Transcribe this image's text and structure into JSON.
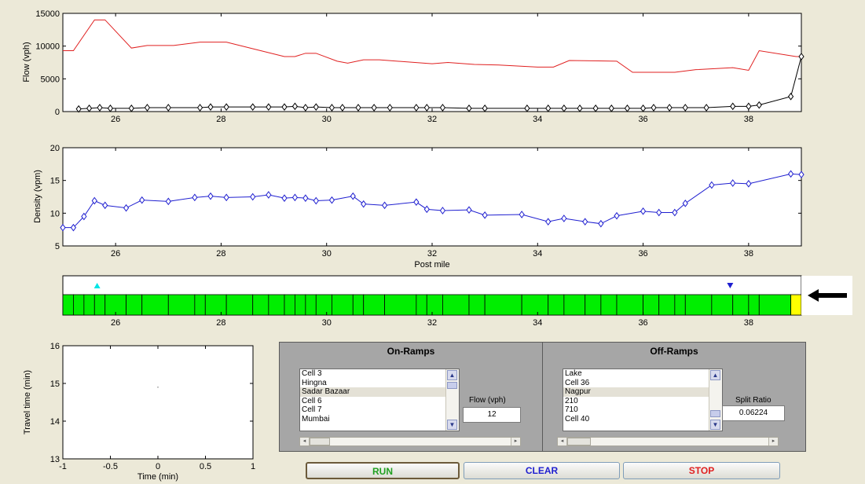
{
  "flow_chart": {
    "ylabel": "Flow (vph)",
    "yticks": [
      "0",
      "5000",
      "10000",
      "15000"
    ],
    "xticks": [
      "26",
      "28",
      "30",
      "32",
      "34",
      "36",
      "38"
    ],
    "xlim": [
      25,
      39
    ],
    "ylim": [
      0,
      15000
    ],
    "series": [
      {
        "color": "#e02020",
        "marker": "none",
        "points": [
          [
            25,
            9300
          ],
          [
            25.2,
            9300
          ],
          [
            25.6,
            14000
          ],
          [
            25.8,
            14000
          ],
          [
            26.3,
            9700
          ],
          [
            26.6,
            10100
          ],
          [
            27.1,
            10100
          ],
          [
            27.6,
            10600
          ],
          [
            28.1,
            10600
          ],
          [
            28.6,
            9600
          ],
          [
            29.2,
            8400
          ],
          [
            29.4,
            8400
          ],
          [
            29.6,
            8900
          ],
          [
            29.8,
            8900
          ],
          [
            30.2,
            7700
          ],
          [
            30.4,
            7400
          ],
          [
            30.7,
            7900
          ],
          [
            31.0,
            7900
          ],
          [
            32.0,
            7300
          ],
          [
            32.3,
            7500
          ],
          [
            32.8,
            7200
          ],
          [
            33.3,
            7100
          ],
          [
            34.0,
            6800
          ],
          [
            34.3,
            6800
          ],
          [
            34.6,
            7800
          ],
          [
            35.5,
            7700
          ],
          [
            35.8,
            6000
          ],
          [
            36.6,
            6000
          ],
          [
            37.0,
            6400
          ],
          [
            37.7,
            6700
          ],
          [
            38.0,
            6300
          ],
          [
            38.2,
            9300
          ],
          [
            38.9,
            8400
          ],
          [
            39.0,
            8400
          ]
        ]
      },
      {
        "color": "#000000",
        "marker": "diamond",
        "points": [
          [
            25.3,
            400
          ],
          [
            25.5,
            500
          ],
          [
            25.7,
            600
          ],
          [
            25.9,
            500
          ],
          [
            26.3,
            500
          ],
          [
            26.6,
            600
          ],
          [
            27.0,
            600
          ],
          [
            27.6,
            600
          ],
          [
            27.8,
            700
          ],
          [
            28.1,
            700
          ],
          [
            28.6,
            700
          ],
          [
            28.9,
            700
          ],
          [
            29.2,
            700
          ],
          [
            29.4,
            800
          ],
          [
            29.6,
            600
          ],
          [
            29.8,
            700
          ],
          [
            30.1,
            600
          ],
          [
            30.3,
            600
          ],
          [
            30.6,
            600
          ],
          [
            30.9,
            600
          ],
          [
            31.2,
            600
          ],
          [
            31.7,
            600
          ],
          [
            31.9,
            600
          ],
          [
            32.2,
            600
          ],
          [
            32.7,
            500
          ],
          [
            33.0,
            500
          ],
          [
            33.8,
            500
          ],
          [
            34.2,
            500
          ],
          [
            34.5,
            500
          ],
          [
            34.8,
            500
          ],
          [
            35.1,
            500
          ],
          [
            35.4,
            500
          ],
          [
            35.7,
            500
          ],
          [
            36.0,
            500
          ],
          [
            36.2,
            600
          ],
          [
            36.5,
            600
          ],
          [
            36.8,
            600
          ],
          [
            37.2,
            600
          ],
          [
            37.7,
            800
          ],
          [
            38.0,
            800
          ],
          [
            38.2,
            1000
          ],
          [
            38.8,
            2300
          ],
          [
            39.0,
            8400
          ]
        ]
      }
    ]
  },
  "density_chart": {
    "ylabel": "Density (vpm)",
    "xlabel": "Post mile",
    "yticks": [
      "5",
      "10",
      "15",
      "20"
    ],
    "xticks": [
      "26",
      "28",
      "30",
      "32",
      "34",
      "36",
      "38"
    ],
    "xlim": [
      25,
      39
    ],
    "ylim": [
      5,
      20
    ],
    "series": [
      {
        "color": "#1f1fd0",
        "marker": "diamond",
        "points": [
          [
            25.0,
            7.8
          ],
          [
            25.2,
            7.8
          ],
          [
            25.4,
            9.5
          ],
          [
            25.6,
            11.9
          ],
          [
            25.8,
            11.2
          ],
          [
            26.2,
            10.8
          ],
          [
            26.5,
            12.0
          ],
          [
            27.0,
            11.8
          ],
          [
            27.5,
            12.4
          ],
          [
            27.8,
            12.6
          ],
          [
            28.1,
            12.4
          ],
          [
            28.6,
            12.5
          ],
          [
            28.9,
            12.8
          ],
          [
            29.2,
            12.3
          ],
          [
            29.4,
            12.4
          ],
          [
            29.6,
            12.3
          ],
          [
            29.8,
            11.9
          ],
          [
            30.1,
            12.0
          ],
          [
            30.5,
            12.6
          ],
          [
            30.7,
            11.4
          ],
          [
            31.1,
            11.2
          ],
          [
            31.7,
            11.7
          ],
          [
            31.9,
            10.6
          ],
          [
            32.2,
            10.4
          ],
          [
            32.7,
            10.5
          ],
          [
            33.0,
            9.7
          ],
          [
            33.7,
            9.8
          ],
          [
            34.2,
            8.7
          ],
          [
            34.5,
            9.2
          ],
          [
            34.9,
            8.7
          ],
          [
            35.2,
            8.4
          ],
          [
            35.5,
            9.6
          ],
          [
            36.0,
            10.3
          ],
          [
            36.3,
            10.1
          ],
          [
            36.6,
            10.1
          ],
          [
            36.8,
            11.5
          ],
          [
            37.3,
            14.3
          ],
          [
            37.7,
            14.6
          ],
          [
            38.0,
            14.5
          ],
          [
            38.8,
            16.0
          ],
          [
            39.0,
            15.9
          ]
        ]
      }
    ]
  },
  "ramp_strip": {
    "xticks": [
      "26",
      "28",
      "30",
      "32",
      "34",
      "36",
      "38"
    ],
    "xlim": [
      25,
      39
    ],
    "boundaries": [
      25.2,
      25.4,
      25.6,
      25.8,
      26.2,
      26.5,
      27.0,
      27.5,
      27.7,
      28.1,
      28.6,
      28.9,
      29.2,
      29.4,
      29.6,
      29.8,
      30.1,
      30.5,
      30.7,
      31.1,
      31.7,
      31.9,
      32.2,
      32.7,
      33.0,
      33.7,
      34.2,
      34.5,
      34.9,
      35.2,
      35.5,
      36.0,
      36.3,
      36.6,
      36.8,
      37.3,
      37.7,
      38.0,
      38.2,
      38.8
    ],
    "cell_color": "#00ee00",
    "last_cell_color": "#ffff00",
    "onramp_marker": {
      "x": 25.65,
      "color": "#00e5e5"
    },
    "offramp_marker": {
      "x": 37.65,
      "color": "#1f1fd0"
    },
    "arrow_icon": "left-arrow-icon"
  },
  "travel_chart": {
    "ylabel": "Travel time (min)",
    "xlabel": "Time (min)",
    "xticks": [
      "-1",
      "-0.5",
      "0",
      "0.5",
      "1"
    ],
    "yticks": [
      "13",
      "14",
      "15",
      "16"
    ],
    "xlim": [
      -1,
      1
    ],
    "ylim": [
      13,
      16
    ],
    "point": [
      0,
      14.9
    ]
  },
  "onramps": {
    "title": "On-Ramps",
    "items": [
      "Cell 3",
      "Hingna",
      "Sadar Bazaar",
      "Cell 6",
      "Cell 7",
      "Mumbai"
    ],
    "selected_index": 2,
    "flow_label": "Flow (vph)",
    "flow_value": "12"
  },
  "offramps": {
    "title": "Off-Ramps",
    "items": [
      "Lake",
      "Cell 36",
      "Nagpur",
      "210",
      "710",
      "Cell 40"
    ],
    "selected_index": 2,
    "split_label": "Split Ratio",
    "split_value": "0.06224"
  },
  "buttons": {
    "run": {
      "label": "RUN",
      "color": "#20a020"
    },
    "clear": {
      "label": "CLEAR",
      "color": "#1f1fd0"
    },
    "stop": {
      "label": "STOP",
      "color": "#e02020"
    }
  }
}
